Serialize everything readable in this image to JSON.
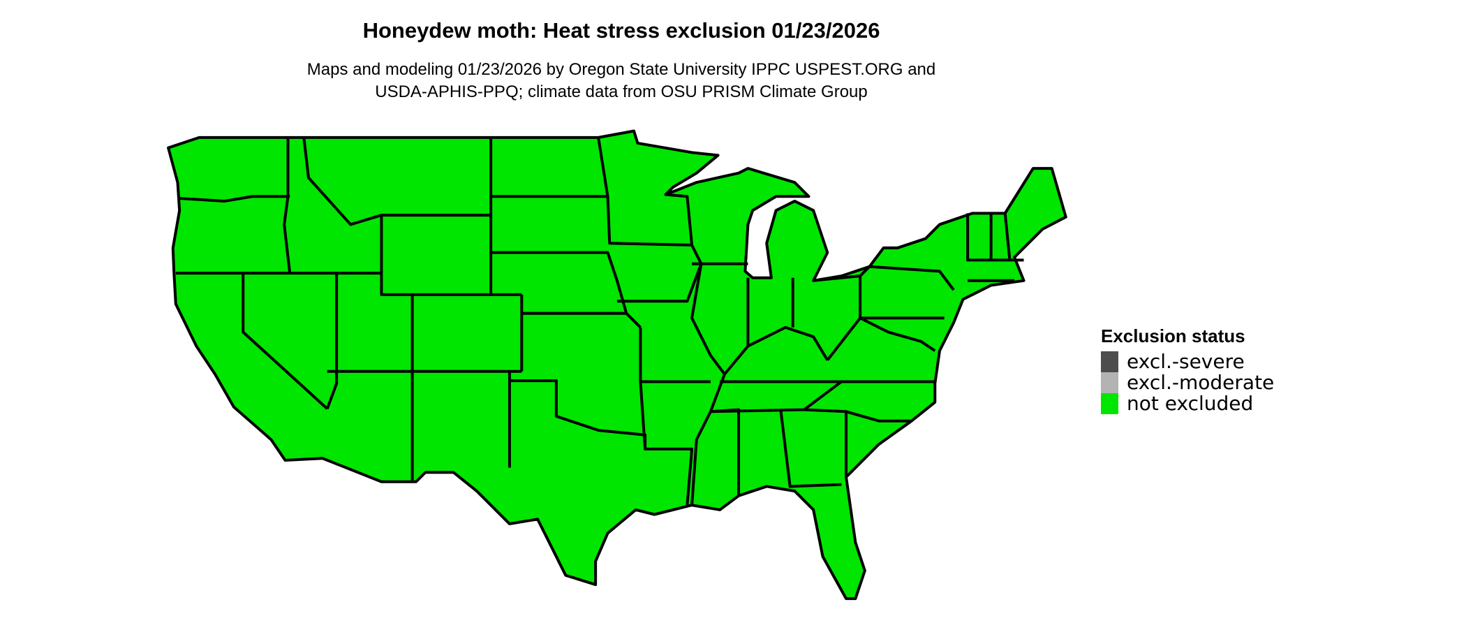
{
  "title": "Honeydew moth: Heat stress exclusion 01/23/2026",
  "subtitle_line1": "Maps and modeling 01/23/2026 by Oregon State University IPPC USPEST.ORG and",
  "subtitle_line2": "USDA-APHIS-PPQ; climate data from OSU PRISM Climate Group",
  "map": {
    "region": "contiguous United States",
    "fill_color": "#00E600",
    "border_color": "#000000",
    "all_states_status": "not excluded"
  },
  "legend": {
    "title": "Exclusion status",
    "placement": "right",
    "items": [
      {
        "label": "excl.-severe",
        "color": "#4D4D4D"
      },
      {
        "label": "excl.-moderate",
        "color": "#B3B3B3"
      },
      {
        "label": "not excluded",
        "color": "#00E600"
      }
    ]
  }
}
